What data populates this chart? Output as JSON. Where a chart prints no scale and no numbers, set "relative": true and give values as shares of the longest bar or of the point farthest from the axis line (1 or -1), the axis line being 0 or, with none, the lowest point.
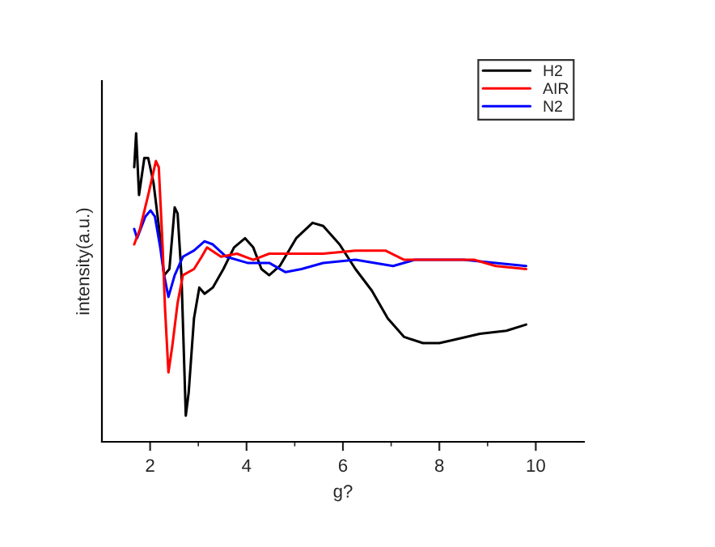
{
  "chart_data": {
    "type": "line",
    "relative": true,
    "xlabel": "g?",
    "ylabel": "intensity(a.u.)",
    "xlim": [
      1,
      11
    ],
    "xticks": [
      2,
      4,
      6,
      8,
      10
    ],
    "tick_labels": "x",
    "grid": false,
    "legend": "top right",
    "series": [
      {
        "name": "H2",
        "color": "#000000",
        "x": [
          1.67,
          1.71,
          1.77,
          1.88,
          1.96,
          2.07,
          2.18,
          2.29,
          2.4,
          2.51,
          2.57,
          2.65,
          2.74,
          2.8,
          2.91,
          3.02,
          3.13,
          3.3,
          3.52,
          3.74,
          3.97,
          4.14,
          4.31,
          4.47,
          4.69,
          5.03,
          5.37,
          5.59,
          5.93,
          6.26,
          6.6,
          6.93,
          7.27,
          7.66,
          8.0,
          8.28,
          8.84,
          9.39,
          9.8
        ],
        "values": [
          0.89,
          1.0,
          0.8,
          0.92,
          0.92,
          0.84,
          0.7,
          0.54,
          0.56,
          0.76,
          0.74,
          0.54,
          0.085,
          0.16,
          0.4,
          0.5,
          0.48,
          0.5,
          0.56,
          0.63,
          0.66,
          0.63,
          0.56,
          0.54,
          0.57,
          0.66,
          0.71,
          0.7,
          0.64,
          0.56,
          0.49,
          0.4,
          0.34,
          0.32,
          0.32,
          0.33,
          0.35,
          0.36,
          0.38
        ]
      },
      {
        "name": "AIR",
        "color": "#ff0000",
        "x": [
          1.67,
          1.79,
          1.96,
          2.12,
          2.18,
          2.26,
          2.31,
          2.38,
          2.46,
          2.57,
          2.68,
          2.91,
          3.07,
          3.18,
          3.47,
          3.8,
          4.14,
          4.47,
          4.69,
          5.14,
          5.59,
          6.26,
          6.88,
          7.27,
          7.83,
          8.72,
          9.17,
          9.8
        ],
        "values": [
          0.64,
          0.69,
          0.8,
          0.91,
          0.89,
          0.63,
          0.43,
          0.225,
          0.31,
          0.45,
          0.54,
          0.56,
          0.6,
          0.63,
          0.6,
          0.61,
          0.59,
          0.61,
          0.61,
          0.61,
          0.61,
          0.62,
          0.62,
          0.59,
          0.59,
          0.59,
          0.57,
          0.56
        ]
      },
      {
        "name": "N2",
        "color": "#0000ff",
        "x": [
          1.67,
          1.73,
          1.9,
          2.01,
          2.1,
          2.21,
          2.29,
          2.38,
          2.51,
          2.68,
          2.91,
          3.13,
          3.3,
          3.58,
          4.02,
          4.47,
          4.81,
          5.14,
          5.59,
          6.26,
          7.04,
          7.49,
          8.5,
          9.8
        ],
        "values": [
          0.69,
          0.66,
          0.73,
          0.75,
          0.73,
          0.63,
          0.54,
          0.47,
          0.54,
          0.6,
          0.62,
          0.65,
          0.64,
          0.6,
          0.58,
          0.58,
          0.55,
          0.56,
          0.58,
          0.59,
          0.57,
          0.59,
          0.59,
          0.57
        ]
      }
    ]
  }
}
